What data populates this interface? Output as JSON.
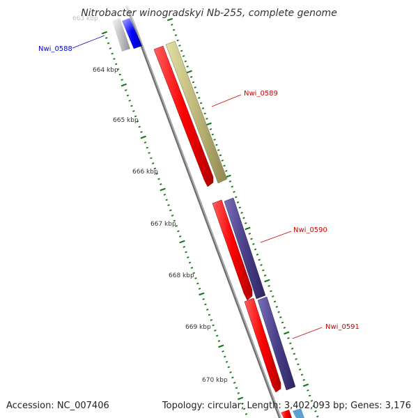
{
  "title": "Nitrobacter winogradskyi Nb-255, complete genome",
  "footer": {
    "accession": "Accession: NC_007406",
    "summary": "Topology: circular; Length: 3,402,093 bp; Genes: 3,176"
  },
  "ticks": [
    {
      "label": "663 kbp"
    },
    {
      "label": "664 kbp"
    },
    {
      "label": "665 kbp"
    },
    {
      "label": "666 kbp"
    },
    {
      "label": "667 kbp"
    },
    {
      "label": "668 kbp"
    },
    {
      "label": "669 kbp"
    },
    {
      "label": "670 kbp"
    }
  ],
  "genes": [
    {
      "id": "Nwi_0588",
      "color": "#0000ff"
    },
    {
      "id": "Nwi_0589",
      "color": "#cc0000"
    },
    {
      "id": "Nwi_0590",
      "color": "#cc0000"
    },
    {
      "id": "Nwi_0591",
      "color": "#cc0000"
    }
  ],
  "colors": {
    "cds": "#ff0000",
    "gene": "#b5b070",
    "gene_purple": "#4a3f8a",
    "tick": "#1a7a1a",
    "backbone": "#808080"
  }
}
